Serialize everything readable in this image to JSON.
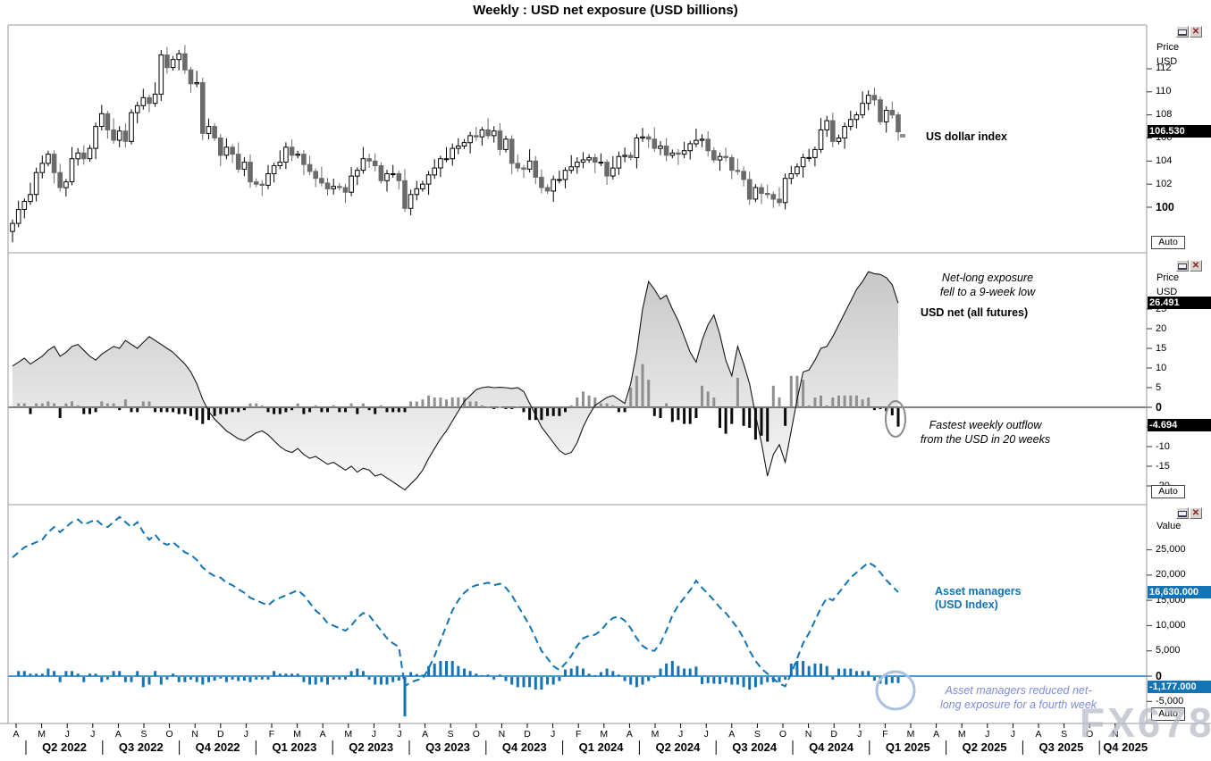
{
  "title": "Weekly : USD net exposure (USD billions)",
  "watermark": "FX678",
  "colors": {
    "accent_blue": "#1273b5",
    "light_blue_note": "#7e8cd8",
    "candle_down": "#6a6a6a",
    "bar_positive": "#8f8f8f",
    "bar_negative": "#0b0b0b",
    "frame": "#9a9a9a",
    "circle_gray": "#8a8a8a",
    "circle_blue": "#a9c2e4"
  },
  "icons": {
    "close": "✕"
  },
  "axis": {
    "months": [
      "A",
      "M",
      "J",
      "J",
      "A",
      "S",
      "O",
      "N",
      "D",
      "J",
      "F",
      "M",
      "A",
      "M",
      "J",
      "J",
      "A",
      "S",
      "O",
      "N",
      "D",
      "J",
      "F",
      "M",
      "A",
      "M",
      "J",
      "J",
      "A",
      "S",
      "O",
      "N",
      "D",
      "J",
      "F",
      "M",
      "A",
      "M",
      "J",
      "J",
      "A",
      "S",
      "O",
      "N"
    ],
    "quarters": [
      "Q2 2022",
      "Q3 2022",
      "Q4 2022",
      "Q1 2023",
      "Q2 2023",
      "Q3 2023",
      "Q4 2023",
      "Q1 2024",
      "Q2 2024",
      "Q3 2024",
      "Q4 2024",
      "Q1 2025",
      "Q2 2025",
      "Q3 2025",
      "Q4 2025"
    ]
  },
  "scales": {
    "panel1": {
      "header1": "Price",
      "header2": "USD",
      "ticks": [
        112,
        110,
        108,
        106,
        104,
        102,
        100
      ],
      "bold_tick": 100,
      "box": "106.530",
      "auto": "Auto"
    },
    "panel2": {
      "header1": "Price",
      "header2": "USD",
      "ticks": [
        25,
        20,
        15,
        10,
        5,
        0,
        -5,
        -10,
        -15,
        -20
      ],
      "bold_tick": 0,
      "box_line": "26.491",
      "box_bar": "-4.694",
      "auto": "Auto"
    },
    "panel3": {
      "header1": "Value",
      "ticks": [
        25000,
        20000,
        15000,
        10000,
        5000,
        0,
        -5000
      ],
      "bold_tick": 0,
      "box_line": "16,630.000",
      "box_bar": "-1,177.000",
      "auto": "Auto"
    }
  },
  "annotations": {
    "top": {
      "label": "US dollar index"
    },
    "middle": {
      "note1": [
        "Net-long exposure",
        "fell to a 9-week low"
      ],
      "series_label": "USD net (all futures)",
      "note2": [
        "Fastest weekly outflow",
        "from the USD in 20 weeks"
      ]
    },
    "bottom": {
      "series_label": [
        "Asset managers",
        "(USD Index)"
      ],
      "note": [
        "Asset managers reduced net-",
        "long exposure for a fourth week"
      ]
    }
  },
  "chart_data": [
    {
      "type": "candlestick",
      "title": "US dollar index",
      "frequency": "weekly",
      "x_start": "Apr 2022",
      "x_data_end": "Feb 2025",
      "x_axis_end": "Nov 2025",
      "yticks": [
        100,
        102,
        104,
        106,
        108,
        110,
        112
      ],
      "ylim": [
        96.5,
        115.8
      ],
      "last_price": 106.53,
      "closes": [
        98.6,
        99.8,
        100.5,
        101.1,
        103.0,
        103.8,
        104.6,
        103.0,
        101.7,
        102.2,
        104.2,
        104.7,
        104.2,
        105.1,
        107.0,
        108.1,
        106.7,
        105.8,
        106.6,
        105.7,
        108.2,
        108.8,
        109.5,
        109.0,
        109.8,
        113.2,
        112.1,
        112.8,
        113.3,
        111.9,
        110.7,
        110.8,
        106.4,
        107.0,
        106.0,
        104.5,
        105.2,
        104.6,
        103.3,
        103.9,
        102.2,
        102.0,
        101.9,
        102.9,
        103.6,
        103.9,
        105.2,
        104.5,
        104.6,
        103.7,
        103.1,
        102.5,
        102.1,
        101.6,
        101.8,
        101.7,
        101.3,
        102.7,
        103.2,
        104.2,
        104.0,
        103.6,
        102.3,
        102.9,
        102.9,
        102.3,
        99.9,
        101.1,
        101.6,
        102.0,
        102.8,
        103.4,
        104.2,
        104.2,
        105.1,
        105.3,
        105.6,
        106.2,
        106.1,
        106.7,
        106.2,
        106.6,
        105.0,
        105.9,
        103.8,
        103.4,
        103.3,
        104.0,
        102.6,
        101.7,
        101.4,
        102.4,
        102.4,
        103.2,
        103.5,
        103.9,
        104.1,
        104.3,
        103.9,
        103.9,
        102.7,
        103.4,
        104.4,
        104.5,
        104.3,
        106.0,
        106.1,
        105.9,
        105.1,
        105.3,
        104.5,
        104.7,
        104.6,
        104.9,
        105.5,
        105.8,
        105.9,
        104.9,
        104.1,
        104.4,
        104.3,
        103.2,
        103.1,
        102.4,
        100.7,
        101.7,
        101.2,
        101.1,
        100.7,
        100.4,
        102.5,
        102.9,
        103.5,
        104.3,
        104.3,
        105.0,
        106.7,
        107.5,
        105.7,
        106.0,
        107.0,
        107.6,
        108.0,
        109.0,
        109.7,
        109.3,
        107.4,
        108.4,
        108.0,
        106.53
      ]
    },
    {
      "type": "area+bar",
      "title": "USD net (all futures)",
      "units": "USD billions",
      "frequency": "weekly",
      "yticks": [
        25,
        20,
        15,
        10,
        5,
        0,
        -5,
        -10,
        -15,
        -20
      ],
      "ylim": [
        -25,
        39
      ],
      "last_net": 26.491,
      "last_weekly_change": -4.694,
      "bars_are": "weekly change of net_position",
      "net_position": [
        10.5,
        11.5,
        12.5,
        11.0,
        12.0,
        13.0,
        14.5,
        15.5,
        13.0,
        14.0,
        15.5,
        16.0,
        14.5,
        13.0,
        12.0,
        13.5,
        14.5,
        15.5,
        15.0,
        17.0,
        16.0,
        15.0,
        16.5,
        18.0,
        17.0,
        16.0,
        15.0,
        14.0,
        12.5,
        11.0,
        9.0,
        6.0,
        2.0,
        -1.0,
        -3.0,
        -4.5,
        -6.0,
        -7.0,
        -8.0,
        -8.5,
        -7.5,
        -6.5,
        -6.0,
        -7.0,
        -8.5,
        -10.0,
        -11.0,
        -11.5,
        -10.5,
        -12.0,
        -13.0,
        -12.5,
        -13.5,
        -14.5,
        -14.0,
        -15.0,
        -16.0,
        -15.0,
        -16.5,
        -15.5,
        -16.0,
        -17.5,
        -17.0,
        -18.0,
        -19.0,
        -20.0,
        -21.0,
        -19.5,
        -18.0,
        -16.0,
        -13.0,
        -10.5,
        -8.0,
        -6.0,
        -3.5,
        -1.0,
        1.5,
        3.0,
        4.5,
        5.0,
        5.2,
        5.0,
        5.1,
        5.0,
        4.8,
        5.0,
        4.0,
        1.0,
        -2.0,
        -5.0,
        -7.0,
        -9.0,
        -11.0,
        -12.0,
        -11.5,
        -9.0,
        -5.0,
        -2.0,
        0.5,
        1.5,
        2.5,
        3.0,
        2.0,
        1.0,
        6.0,
        14.0,
        25.0,
        32.0,
        30.0,
        27.5,
        28.5,
        25.0,
        22.0,
        18.0,
        14.0,
        11.5,
        17.0,
        21.0,
        23.5,
        18.5,
        12.0,
        8.0,
        15.5,
        11.0,
        6.0,
        -2.0,
        -9.0,
        -17.5,
        -12.0,
        -9.5,
        -14.0,
        -6.0,
        2.0,
        9.0,
        9.5,
        12.0,
        15.0,
        15.5,
        18.0,
        21.0,
        24.0,
        27.0,
        30.0,
        32.0,
        34.5,
        34.0,
        33.8,
        33.0,
        31.185,
        26.491
      ]
    },
    {
      "type": "line+bar",
      "title": "Asset managers (USD Index)",
      "frequency": "weekly",
      "yticks": [
        25000,
        20000,
        15000,
        10000,
        5000,
        0,
        -5000
      ],
      "ylim": [
        -9000,
        33500
      ],
      "last_net": 16630.0,
      "last_weekly_change": -1177.0,
      "bars_are": "weekly change of net_position",
      "net_position": [
        23500,
        24500,
        25500,
        26000,
        26500,
        27000,
        28500,
        29500,
        28500,
        29500,
        30500,
        31000,
        30000,
        30500,
        31000,
        30000,
        29500,
        30500,
        31500,
        30500,
        29500,
        30500,
        28500,
        27000,
        28000,
        26500,
        26000,
        26500,
        25500,
        24500,
        24000,
        23000,
        21500,
        20500,
        19800,
        19500,
        18500,
        18000,
        17200,
        16500,
        15500,
        15000,
        14500,
        14000,
        15000,
        15500,
        16000,
        16500,
        17000,
        16000,
        14500,
        13000,
        12000,
        10500,
        10000,
        9500,
        9000,
        10000,
        11500,
        12500,
        12000,
        10500,
        9000,
        7500,
        6500,
        5800,
        -2000,
        -1200,
        -800,
        -500,
        1500,
        4000,
        7000,
        10000,
        13000,
        15000,
        16500,
        17500,
        18000,
        18200,
        18500,
        18000,
        18300,
        17500,
        16000,
        14000,
        12000,
        10000,
        7500,
        5000,
        3500,
        2000,
        1200,
        2500,
        4000,
        6000,
        7500,
        8000,
        8200,
        9000,
        10500,
        11500,
        11800,
        11000,
        9500,
        7500,
        6000,
        5200,
        5000,
        6500,
        9000,
        12000,
        14000,
        15500,
        17000,
        18900,
        17500,
        16300,
        15000,
        13600,
        12500,
        11000,
        9500,
        7500,
        5000,
        3000,
        1500,
        500,
        -500,
        -1500,
        -2000,
        500,
        3500,
        6500,
        8500,
        11000,
        13500,
        15500,
        15000,
        16500,
        18000,
        19500,
        20500,
        21500,
        22500,
        21800,
        20500,
        19000,
        17807,
        16630
      ]
    }
  ]
}
